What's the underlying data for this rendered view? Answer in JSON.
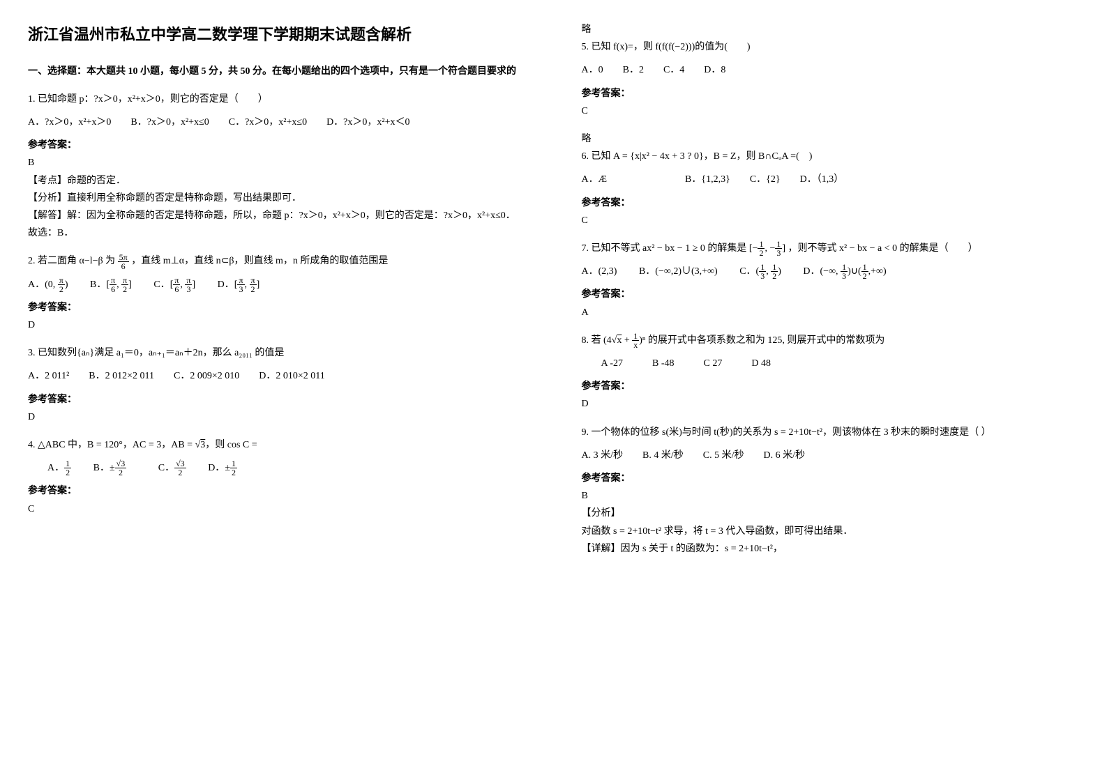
{
  "title": "浙江省温州市私立中学高二数学理下学期期末试题含解析",
  "section1": "一、选择题：本大题共 10 小题，每小题 5 分，共 50 分。在每小题给出的四个选项中，只有是一个符合题目要求的",
  "q1": {
    "stem": "1. 已知命题 p：?x＞0，x²+x＞0，则它的否定是（　　）",
    "opts": "A．?x＞0，x²+x＞0　　B．?x＞0，x²+x≤0　　C．?x＞0，x²+x≤0　　D．?x＞0，x²+x＜0",
    "ans_label": "参考答案：",
    "ans": "B",
    "e1": "【考点】命题的否定．",
    "e2": "【分析】直接利用全称命题的否定是特称命题，写出结果即可．",
    "e3": "【解答】解：因为全称命题的否定是特称命题，所以，命题 p：?x＞0，x²+x＞0，则它的否定是：?x＞0，x²+x≤0．",
    "e4": "故选：B．"
  },
  "q2": {
    "stem_a": "2. 若二面角 α−l−β 为 ",
    "frac_num": "5π",
    "frac_den": "6",
    "stem_b": "，直线 m⊥α，直线 n⊂β，则直线 m，n 所成角的取值范围是",
    "optA_a": "(0, ",
    "optA_num": "π",
    "optA_den": "2",
    "optA_b": ")",
    "optB_a": "[",
    "optB_n1": "π",
    "optB_d1": "6",
    "optB_m": ", ",
    "optB_n2": "π",
    "optB_d2": "2",
    "optB_b": "]",
    "optC_a": "[",
    "optC_n1": "π",
    "optC_d1": "6",
    "optC_m": ", ",
    "optC_n2": "π",
    "optC_d2": "3",
    "optC_b": "]",
    "optD_a": "[",
    "optD_n1": "π",
    "optD_d1": "3",
    "optD_m": ", ",
    "optD_n2": "π",
    "optD_d2": "2",
    "optD_b": "]",
    "ans_label": "参考答案：",
    "ans": "D"
  },
  "q3": {
    "stem": "3. 已知数列{aₙ}满足 a₁＝0，aₙ₊₁＝aₙ＋2n，那么 a₂₀₁₁ 的值是",
    "opts": "A．2 011²　　B．2 012×2 011　　C．2 009×2 010　　D．2 010×2 011",
    "ans_label": "参考答案：",
    "ans": "D"
  },
  "q4": {
    "stem_a": "4. △ABC 中，B = 120°，AC = 3，AB = ",
    "stem_sqrt": "3",
    "stem_b": "，则 cos C =",
    "lblA": "A．",
    "A_num": "1",
    "A_den": "2",
    "lblB": "B．",
    "B_pre": "±",
    "B_num": "√3",
    "B_den": "2",
    "lblC": "C．",
    "C_num": "√3",
    "C_den": "2",
    "lblD": "D．",
    "D_pre": "±",
    "D_num": "1",
    "D_den": "2",
    "ans_label": "参考答案：",
    "ans": "C"
  },
  "r_略1": "略",
  "q5": {
    "stem": "5. 已知 f(x)=，则 f(f(f(−2)))的值为(　　)",
    "opts": "A．0　　B．2　　C．4　　D．8",
    "ans_label": "参考答案：",
    "ans": "C"
  },
  "r_略2": "略",
  "q6": {
    "stem": "6. 已知 A = {x|x² − 4x + 3 ? 0}，B = Z，则 B∩CᵤA =(　)",
    "opts": "A．Æ　　　　　　　　B．{1,2,3}　　C．{2}　　D．（1,3）",
    "ans_label": "参考答案：",
    "ans": "C"
  },
  "q7": {
    "stem_a": "7. 已知不等式 ax² − bx − 1 ≥ 0 的解集是 ",
    "set_l": "[−",
    "s_n1": "1",
    "s_d1": "2",
    "s_m": ", −",
    "s_n2": "1",
    "s_d2": "3",
    "set_r": "]",
    "stem_b": "，则不等式 x² − bx − a < 0 的解集是（　　）",
    "lblA": "A．",
    "optA": "(2,3)",
    "lblB": "B．",
    "optB": "(−∞,2)∪(3,+∞)",
    "lblC": "C．",
    "C_l": "(",
    "C_n1": "1",
    "C_d1": "3",
    "C_m": ", ",
    "C_n2": "1",
    "C_d2": "2",
    "C_r": ")",
    "lblD": "D．",
    "D_l": "(−∞, ",
    "D_n1": "1",
    "D_d1": "3",
    "D_m": ")∪(",
    "D_n2": "1",
    "D_d2": "2",
    "D_r": ",+∞)",
    "ans_label": "参考答案：",
    "ans": "A"
  },
  "q8": {
    "stem_a": "8. 若 (4",
    "stem_sqrt": "x",
    "stem_b": " + ",
    "f_num": "1",
    "f_den": "x",
    "stem_c": ")ⁿ 的展开式中各项系数之和为 125, 则展开式中的常数项为",
    "opts": "　　A  -27　　　B  -48　　　C  27　　　D  48",
    "ans_label": "参考答案：",
    "ans": "D"
  },
  "q9": {
    "stem": "9. 一个物体的位移 s(米)与时间 t(秒)的关系为 s = 2+10t−t²，则该物体在 3 秒末的瞬时速度是（ ）",
    "opts": "A. 3 米/秒　　B. 4 米/秒　　C. 5 米/秒　　D. 6 米/秒",
    "ans_label": "参考答案：",
    "ans": "B",
    "e1": "【分析】",
    "e2": "对函数 s = 2+10t−t² 求导，将 t = 3 代入导函数，即可得出结果．",
    "e3": "【详解】因为 s 关于 t 的函数为：s = 2+10t−t²，"
  }
}
